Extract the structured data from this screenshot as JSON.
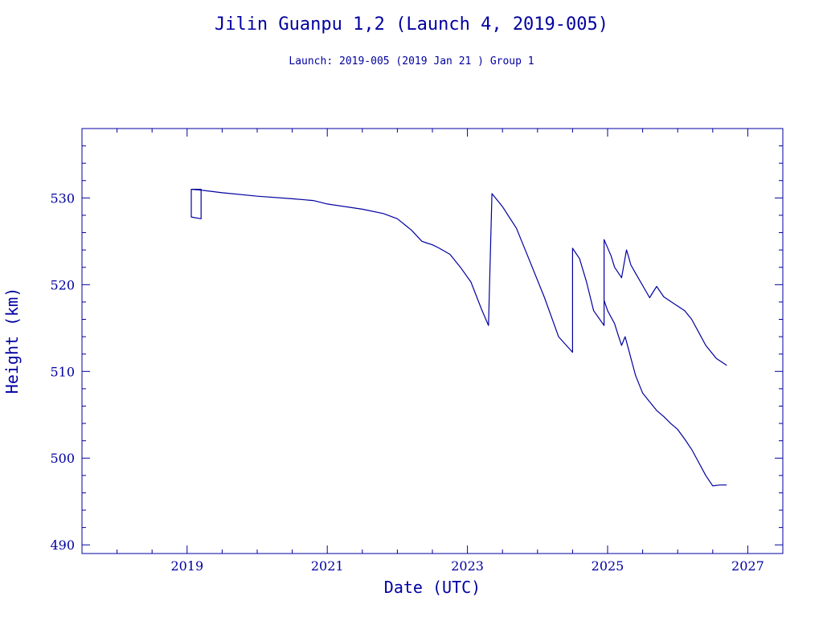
{
  "chart_data": {
    "type": "line",
    "title": "Jilin Guanpu 1,2 (Launch 4, 2019-005)",
    "subtitle": "Launch: 2019-005  (2019 Jan 21 )  Group 1",
    "xlabel": "Date (UTC)",
    "ylabel": "Height (km)",
    "xlim": [
      2017.5,
      2027.5
    ],
    "ylim": [
      489,
      538
    ],
    "x_ticks": [
      2019,
      2021,
      2023,
      2025,
      2027
    ],
    "x_minor_step": 0.5,
    "y_ticks": [
      490,
      500,
      510,
      520,
      530
    ],
    "y_minor_step": 2,
    "grid": false,
    "legend": "none",
    "line_color": "#0000a0",
    "series": [
      {
        "x": [
          2019.06,
          2019.06,
          2019.2,
          2019.2,
          2019.06,
          2019.2,
          2019.5,
          2020.0,
          2020.5,
          2020.8,
          2021.0,
          2021.5,
          2021.8,
          2022.0,
          2022.2,
          2022.35,
          2022.42,
          2022.5,
          2022.6,
          2022.75,
          2022.9,
          2023.05,
          2023.2,
          2023.3,
          2023.35,
          2023.5,
          2023.7,
          2023.9,
          2024.1,
          2024.3,
          2024.5,
          2024.5,
          2024.6,
          2024.7,
          2024.8,
          2024.95,
          2024.95,
          2025.05,
          2025.1,
          2025.2,
          2025.27,
          2025.3,
          2025.33,
          2025.4,
          2025.6,
          2025.7,
          2025.8,
          2025.95
        ],
        "y": [
          531.0,
          527.8,
          527.6,
          531.0,
          531.0,
          530.9,
          530.6,
          530.2,
          529.9,
          529.7,
          529.3,
          528.7,
          528.2,
          527.6,
          526.3,
          525.0,
          524.8,
          524.6,
          524.2,
          523.5,
          522.0,
          520.3,
          517.2,
          515.3,
          530.5,
          529.0,
          526.5,
          522.5,
          518.5,
          514.0,
          512.2,
          524.2,
          523.0,
          520.3,
          517.0,
          515.3,
          525.2,
          523.3,
          522.0,
          520.8,
          524.0,
          523.2,
          522.3,
          521.3,
          518.5,
          519.8,
          518.6,
          517.8
        ]
      },
      {
        "x": [
          2025.95,
          2026.1,
          2026.2,
          2026.3,
          2026.4,
          2026.55,
          2026.7
        ],
        "y": [
          517.8,
          517.0,
          516.0,
          514.5,
          513.0,
          511.5,
          510.7
        ]
      },
      {
        "x": [
          2024.95,
          2025.0,
          2025.1,
          2025.15,
          2025.2,
          2025.25,
          2025.3,
          2025.35,
          2025.4,
          2025.5,
          2025.6,
          2025.7,
          2025.8,
          2025.9,
          2026.0,
          2026.1,
          2026.2,
          2026.3,
          2026.4,
          2026.5,
          2026.6,
          2026.7
        ],
        "y": [
          518.2,
          517.0,
          515.5,
          514.2,
          513.0,
          514.0,
          512.5,
          511.0,
          509.5,
          507.5,
          506.5,
          505.5,
          504.8,
          504.0,
          503.3,
          502.2,
          501.0,
          499.5,
          498.0,
          496.8,
          496.9,
          496.9
        ]
      }
    ]
  }
}
